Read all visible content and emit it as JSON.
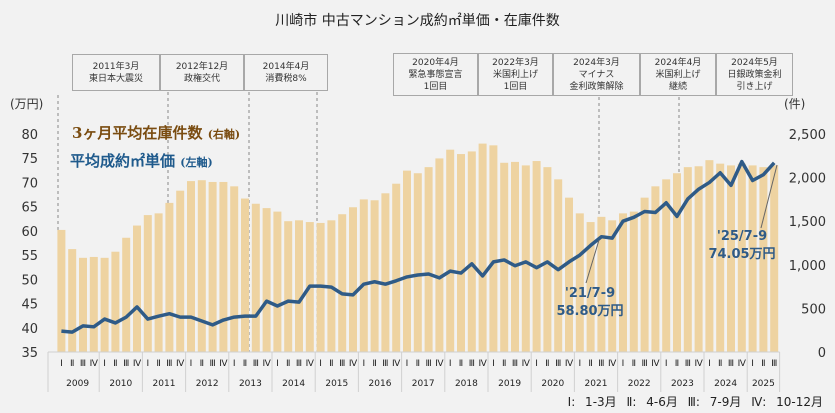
{
  "title": "川崎市 中古マンション成約㎡単価・在庫件数",
  "events": [
    {
      "date": "2011年3月",
      "text": [
        "東日本大震災"
      ]
    },
    {
      "date": "2012年12月",
      "text": [
        "政権交代"
      ]
    },
    {
      "date": "2014年4月",
      "text": [
        "消費税8%"
      ]
    },
    {
      "date": "2020年4月",
      "text": [
        "緊急事態宣言",
        "1回目"
      ]
    },
    {
      "date": "2022年3月",
      "text": [
        "米国利上げ",
        "1回目"
      ]
    },
    {
      "date": "2024年3月",
      "text": [
        "マイナス",
        "金利政策解除"
      ]
    },
    {
      "date": "2024年4月",
      "text": [
        "米国利上げ",
        "継続"
      ]
    },
    {
      "date": "2024年5月",
      "text": [
        "日銀政策金利",
        "引き上げ"
      ]
    }
  ],
  "quarter_note": "Ⅰ: 1-3月 Ⅱ: 4-6月 Ⅲ: 7-9月 Ⅳ: 10-12月",
  "colors": {
    "bars": "#eed3a1",
    "line": "#2f5b87",
    "legend_inventory": "#7a4c10",
    "legend_price": "#1f5a8c"
  },
  "chart_data": {
    "type": "bar+line",
    "title": "川崎市 中古マンション成約㎡単価・在庫件数",
    "left_axis": {
      "unit": "(万円)",
      "range": [
        35,
        80
      ],
      "ticks": [
        "35",
        "40",
        "45",
        "50",
        "55",
        "60",
        "65",
        "70",
        "75",
        "80"
      ]
    },
    "right_axis": {
      "unit": "(件)",
      "range": [
        0,
        2500
      ],
      "ticks": [
        "0",
        "500",
        "1,000",
        "1,500",
        "2,000",
        "2,500"
      ]
    },
    "years": [
      "2009",
      "2010",
      "2011",
      "2012",
      "2013",
      "2014",
      "2015",
      "2016",
      "2017",
      "2018",
      "2019",
      "2020",
      "2021",
      "2022",
      "2023",
      "2024",
      "2025"
    ],
    "quarter_labels": [
      "Ⅰ",
      "Ⅱ",
      "Ⅲ",
      "Ⅳ"
    ],
    "grid": false,
    "legend_placement": "top-left",
    "series": [
      {
        "name": "3ヶ月平均在庫件数",
        "axis_label": "(右軸)",
        "type": "bar",
        "axis": "right",
        "values": [
          1400,
          1180,
          1080,
          1090,
          1080,
          1150,
          1310,
          1450,
          1570,
          1590,
          1710,
          1850,
          1960,
          1970,
          1950,
          1950,
          1900,
          1760,
          1700,
          1650,
          1610,
          1500,
          1510,
          1490,
          1480,
          1510,
          1580,
          1660,
          1750,
          1740,
          1820,
          1930,
          2080,
          2050,
          2120,
          2220,
          2320,
          2270,
          2300,
          2390,
          2370,
          2170,
          2180,
          2140,
          2190,
          2120,
          1980,
          1770,
          1590,
          1490,
          1550,
          1510,
          1590,
          1610,
          1770,
          1900,
          1980,
          2050,
          2120,
          2130,
          2200,
          2160,
          2140,
          2160,
          2140,
          2120,
          2140
        ]
      },
      {
        "name": "平均成約㎡単価",
        "axis_label": "(左軸)",
        "type": "line",
        "axis": "left",
        "values": [
          39.3,
          39.1,
          40.4,
          40.2,
          41.8,
          41.0,
          42.2,
          44.3,
          41.8,
          42.4,
          42.9,
          42.2,
          42.2,
          41.4,
          40.6,
          41.6,
          42.2,
          42.4,
          42.4,
          45.5,
          44.5,
          45.5,
          45.3,
          48.6,
          48.6,
          48.4,
          47.0,
          46.8,
          49.0,
          49.5,
          49.0,
          49.7,
          50.5,
          50.9,
          51.1,
          50.3,
          51.7,
          51.3,
          53.2,
          50.7,
          53.6,
          54.0,
          52.8,
          53.6,
          52.4,
          53.6,
          52.0,
          53.6,
          55.0,
          57.0,
          58.8,
          58.5,
          62.0,
          62.8,
          64.0,
          63.8,
          65.8,
          63.0,
          66.6,
          68.6,
          70.0,
          72.0,
          69.4,
          74.3,
          70.4,
          71.6,
          74.05
        ]
      }
    ],
    "annotations": [
      {
        "label": "'21/7-9",
        "value": "58.80万円"
      },
      {
        "label": "'25/7-9",
        "value": "74.05万円"
      }
    ]
  }
}
